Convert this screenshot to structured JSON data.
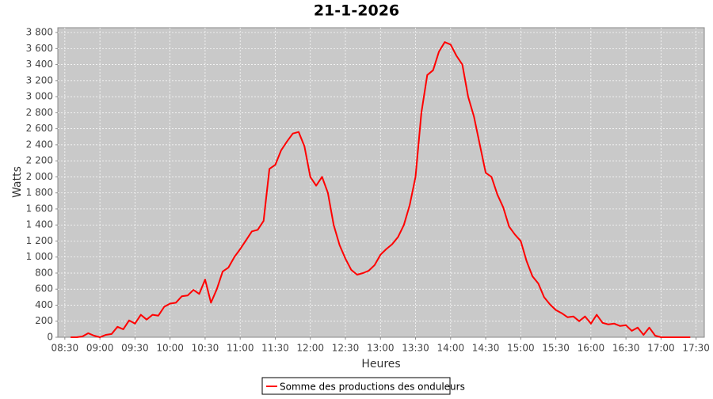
{
  "chart_data": {
    "type": "line",
    "title": "21-1-2026",
    "x_label": "Heures",
    "y_label": "Watts",
    "x": [
      "08:35",
      "08:40",
      "08:45",
      "08:50",
      "08:55",
      "09:00",
      "09:05",
      "09:10",
      "09:15",
      "09:20",
      "09:25",
      "09:30",
      "09:35",
      "09:40",
      "09:45",
      "09:50",
      "09:55",
      "10:00",
      "10:05",
      "10:10",
      "10:15",
      "10:20",
      "10:25",
      "10:30",
      "10:35",
      "10:40",
      "10:45",
      "10:50",
      "10:55",
      "11:00",
      "11:05",
      "11:10",
      "11:15",
      "11:20",
      "11:25",
      "11:30",
      "11:35",
      "11:40",
      "11:45",
      "11:50",
      "11:55",
      "12:00",
      "12:05",
      "12:10",
      "12:15",
      "12:20",
      "12:25",
      "12:30",
      "12:35",
      "12:40",
      "12:45",
      "12:50",
      "12:55",
      "13:00",
      "13:05",
      "13:10",
      "13:15",
      "13:20",
      "13:25",
      "13:30",
      "13:35",
      "13:40",
      "13:45",
      "13:50",
      "13:55",
      "14:00",
      "14:05",
      "14:10",
      "14:15",
      "14:20",
      "14:25",
      "14:30",
      "14:35",
      "14:40",
      "14:45",
      "14:50",
      "14:55",
      "15:00",
      "15:05",
      "15:10",
      "15:15",
      "15:20",
      "15:25",
      "15:30",
      "15:35",
      "15:40",
      "15:45",
      "15:50",
      "15:55",
      "16:00",
      "16:05",
      "16:10",
      "16:15",
      "16:20",
      "16:25",
      "16:30",
      "16:35",
      "16:40",
      "16:45",
      "16:50",
      "16:55",
      "17:00",
      "17:05",
      "17:10",
      "17:15",
      "17:20",
      "17:25"
    ],
    "series": [
      {
        "name": "Somme des productions des onduleurs",
        "color": "#ff0000",
        "values": [
          0,
          0,
          10,
          50,
          20,
          0,
          30,
          40,
          130,
          100,
          210,
          170,
          280,
          220,
          280,
          270,
          380,
          420,
          430,
          510,
          520,
          590,
          540,
          720,
          430,
          600,
          820,
          870,
          1000,
          1100,
          1210,
          1320,
          1340,
          1450,
          2100,
          2150,
          2330,
          2440,
          2540,
          2560,
          2380,
          2000,
          1890,
          2000,
          1800,
          1400,
          1150,
          980,
          840,
          780,
          800,
          830,
          900,
          1030,
          1100,
          1160,
          1250,
          1400,
          1650,
          2000,
          2800,
          3270,
          3330,
          3560,
          3680,
          3650,
          3510,
          3400,
          3000,
          2750,
          2400,
          2050,
          2000,
          1780,
          1620,
          1380,
          1280,
          1200,
          950,
          760,
          670,
          500,
          410,
          340,
          300,
          250,
          260,
          200,
          260,
          170,
          280,
          180,
          160,
          170,
          140,
          150,
          80,
          120,
          30,
          120,
          20,
          0,
          0,
          0,
          0,
          0,
          0
        ]
      }
    ],
    "xlim": [
      "08:24",
      "17:37"
    ],
    "xticks": [
      "08:30",
      "09:00",
      "09:30",
      "10:00",
      "10:30",
      "11:00",
      "11:30",
      "12:00",
      "12:30",
      "13:00",
      "13:30",
      "14:00",
      "14:30",
      "15:00",
      "15:30",
      "16:00",
      "16:30",
      "17:00",
      "17:30"
    ],
    "ylim": [
      0,
      3860
    ],
    "yticks": [
      0,
      200,
      400,
      600,
      800,
      {
        "value": 1000,
        "label": "1 000"
      },
      {
        "value": 1200,
        "label": "1 200"
      },
      {
        "value": 1400,
        "label": "1 400"
      },
      {
        "value": 1600,
        "label": "1 600"
      },
      {
        "value": 1800,
        "label": "1 800"
      },
      {
        "value": 2000,
        "label": "2 000"
      },
      {
        "value": 2200,
        "label": "2 200"
      },
      {
        "value": 2400,
        "label": "2 400"
      },
      {
        "value": 2600,
        "label": "2 600"
      },
      {
        "value": 2800,
        "label": "2 800"
      },
      {
        "value": 3000,
        "label": "3 000"
      },
      {
        "value": 3200,
        "label": "3 200"
      },
      {
        "value": 3400,
        "label": "3 400"
      },
      {
        "value": 3600,
        "label": "3 600"
      },
      {
        "value": 3800,
        "label": "3 800"
      }
    ],
    "grid": true
  }
}
